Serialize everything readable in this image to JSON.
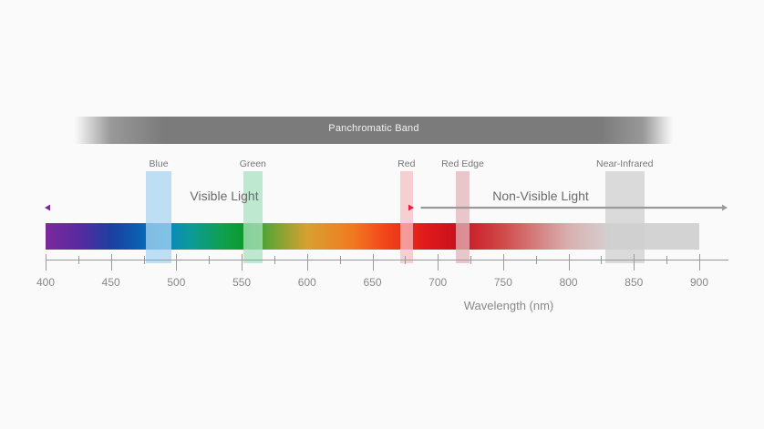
{
  "diagram": {
    "panchromatic_label": "Panchromatic Band",
    "bands": [
      {
        "id": "blue",
        "label": "Blue",
        "start": 477,
        "end": 496,
        "color": "#a9d6f0"
      },
      {
        "id": "green",
        "label": "Green",
        "start": 551,
        "end": 566,
        "color": "#a9e3c2"
      },
      {
        "id": "red",
        "label": "Red",
        "start": 671,
        "end": 681,
        "color": "#f6c0c6"
      },
      {
        "id": "red-edge",
        "label": "Red Edge",
        "start": 714,
        "end": 724,
        "color": "#e3b4b9"
      },
      {
        "id": "near-infrared",
        "label": "Near-Infrared",
        "start": 828,
        "end": 858,
        "color": "#cfcfcf"
      }
    ],
    "regions": {
      "visible": {
        "label": "Visible Light",
        "start": 400,
        "end": 681,
        "color_start": "#7a2a9a",
        "color_end": "#e8203a"
      },
      "non_visible": {
        "label": "Non-Visible Light",
        "start": 687,
        "end": 920,
        "color": "#9a9a9a"
      }
    },
    "axis": {
      "title": "Wavelength (nm)",
      "min": 400,
      "max": 920,
      "major_ticks": [
        400,
        450,
        500,
        550,
        600,
        650,
        700,
        750,
        800,
        850,
        900
      ],
      "minor_ticks": [
        425,
        475,
        525,
        575,
        625,
        675,
        725,
        775,
        825,
        875
      ]
    },
    "spectrum_range": [
      400,
      900
    ]
  }
}
